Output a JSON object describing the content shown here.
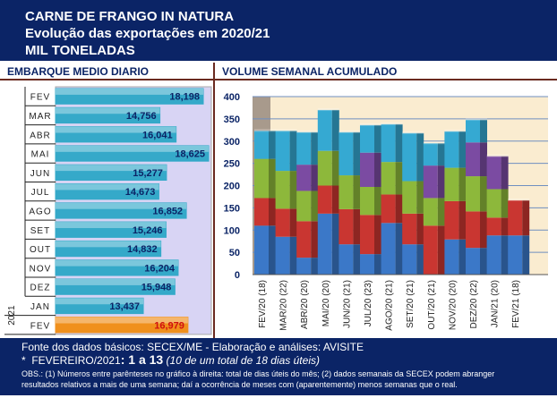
{
  "header": {
    "line1": "CARNE DE FRANGO IN NATURA",
    "line2": "Evolução das exportações em 2020/21",
    "line3": "MIL TONELADAS"
  },
  "left_title": "EMBARQUE MEDIO DIARIO",
  "right_title": "VOLUME SEMANAL ACUMULADO",
  "footer": {
    "source": "Fonte dos dados básicos: SECEX/ME - Elaboração e análises: AVISITE",
    "note_star": "*",
    "note_month": "FEVEREIRO/2021",
    "note_range": ": 1 a 13",
    "note_days": "(10 de um total de 18 dias úteis)",
    "obs": "OBS.: (1) Números entre parênteses no gráfico à direita: total de dias úteis do mês; (2) dados semanais da SECEX podem abranger resultados relativos a mais de uma semana; daí a ocorrência de meses com (aparentemente) menos semanas que o real."
  },
  "chart_data": [
    {
      "type": "bar",
      "orientation": "horizontal",
      "title": "EMBARQUE MEDIO DIARIO",
      "categories": [
        "FEV",
        "MAR",
        "ABR",
        "MAI",
        "JUN",
        "JUL",
        "AGO",
        "SET",
        "OUT",
        "NOV",
        "DEZ",
        "JAN",
        "FEV"
      ],
      "value_labels": [
        "18,198",
        "14,756",
        "16,041",
        "18,625",
        "15,277",
        "14,673",
        "16,852",
        "15,246",
        "14,832",
        "16,204",
        "15,948",
        "13,437",
        "16,979"
      ],
      "values": [
        18.198,
        14.756,
        16.041,
        18.625,
        15.277,
        14.673,
        16.852,
        15.246,
        14.832,
        16.204,
        15.948,
        13.437,
        16.979
      ],
      "year_label": "2021",
      "highlight_index": 12,
      "colors": {
        "bar": "#35a9c9",
        "highlight": "#f0901c",
        "label": "#0b2466",
        "highlight_label": "#d01010",
        "background": "#d8d4f4"
      }
    },
    {
      "type": "bar",
      "stacked": true,
      "title": "VOLUME SEMANAL ACUMULADO",
      "categories": [
        "FEV/20 (18)",
        "MAR/20 (22)",
        "ABR/20 (20)",
        "MAI/20 (20)",
        "JUN/20 (21)",
        "JUL/20 (23)",
        "AGO/20 (21)",
        "SET/20 (21)",
        "OUT/20 (21)",
        "NOV/20 (20)",
        "DEZ/20 (22)",
        "JAN/21 (20)",
        "FEV/21 (18)"
      ],
      "ylim": [
        0,
        400
      ],
      "yticks": [
        "0",
        "50",
        "100",
        "150",
        "200",
        "250",
        "300",
        "350",
        "400"
      ],
      "grid": true,
      "series": [
        {
          "color": "#3b78c8",
          "values": [
            110,
            85,
            38,
            137,
            68,
            46,
            116,
            68,
            0,
            79,
            60,
            88,
            88
          ]
        },
        {
          "color": "#c93631",
          "values": [
            62,
            63,
            82,
            63,
            79,
            88,
            64,
            69,
            110,
            86,
            82,
            40,
            79
          ]
        },
        {
          "color": "#8db83b",
          "values": [
            88,
            85,
            68,
            78,
            76,
            63,
            73,
            73,
            62,
            75,
            79,
            64,
            0
          ]
        },
        {
          "color": "#7b4ba2",
          "values": [
            0,
            0,
            59,
            0,
            0,
            77,
            0,
            0,
            73,
            0,
            76,
            74,
            0
          ]
        },
        {
          "color": "#35a9d2",
          "values": [
            63,
            90,
            73,
            92,
            97,
            62,
            85,
            108,
            50,
            82,
            51,
            0,
            0
          ]
        }
      ]
    }
  ]
}
